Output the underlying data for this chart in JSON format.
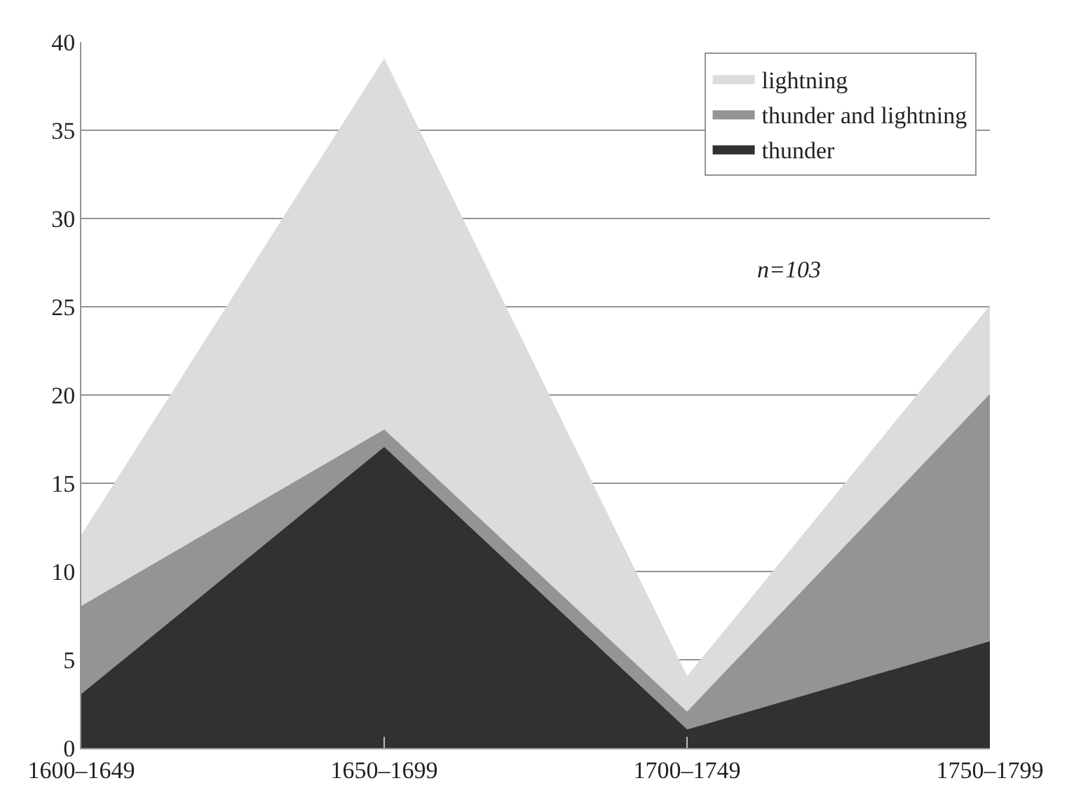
{
  "chart_data": {
    "type": "area",
    "stacked": true,
    "categories": [
      "1600–1649",
      "1650–1699",
      "1700–1749",
      "1750–1799"
    ],
    "series": [
      {
        "name": "thunder",
        "color": "#323031",
        "values": [
          3,
          17,
          1,
          6
        ]
      },
      {
        "name": "thunder and lightning",
        "color": "#939496",
        "values": [
          5,
          1,
          1,
          14
        ]
      },
      {
        "name": "lightning",
        "color": "#dcdcde",
        "values": [
          4,
          21,
          2,
          5
        ]
      }
    ],
    "ylim": [
      0,
      40
    ],
    "yticks": [
      0,
      5,
      10,
      15,
      20,
      25,
      30,
      35,
      40
    ],
    "grid": "y",
    "legend": "top right",
    "annotations": [
      "n=103"
    ]
  }
}
